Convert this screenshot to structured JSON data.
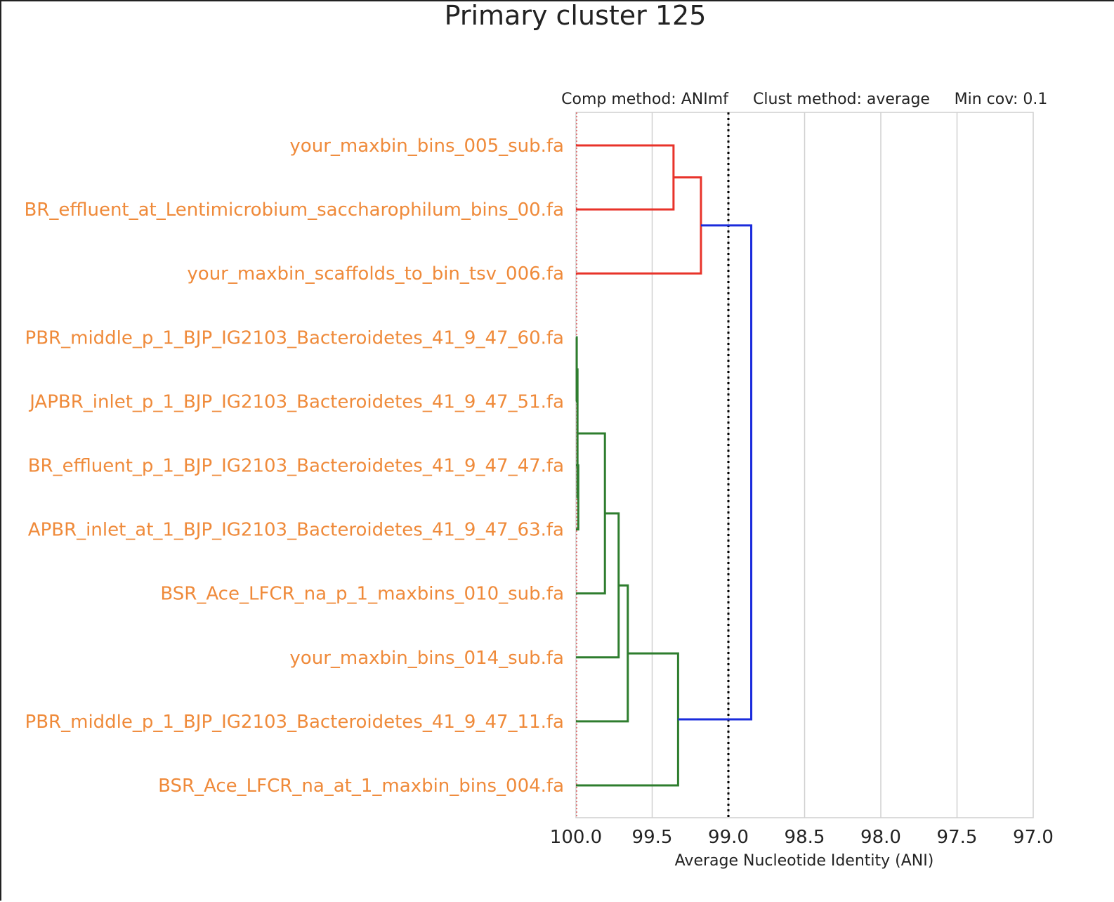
{
  "chart_data": {
    "type": "dendrogram",
    "title": "Primary cluster 125",
    "annotations": [
      "Comp method: ANImf",
      "Clust method: average",
      "Min cov: 0.1"
    ],
    "xlabel": "Average Nucleotide Identity (ANI)",
    "xlim": [
      100.0,
      97.0
    ],
    "x_ticks": [
      "100.0",
      "99.5",
      "99.0",
      "98.5",
      "98.0",
      "97.5",
      "97.0"
    ],
    "tick_values": [
      100.0,
      99.5,
      99.0,
      98.5,
      98.0,
      97.5,
      97.0
    ],
    "grid": true,
    "threshold_line": 99.0,
    "reference_line": 100.0,
    "leaf_color": "#ef8a3a",
    "colors": {
      "red": "#e8332a",
      "green": "#2e7d2e",
      "blue": "#1a2bdc",
      "threshold": "#000000",
      "reference": "#e05a5a"
    },
    "leaves": [
      "your_maxbin_bins_005_sub.fa",
      "BR_effluent_at_Lentimicrobium_saccharophilum_bins_00.fa",
      "your_maxbin_scaffolds_to_bin_tsv_006.fa",
      "PBR_middle_p_1_BJP_IG2103_Bacteroidetes_41_9_47_60.fa",
      "JAPBR_inlet_p_1_BJP_IG2103_Bacteroidetes_41_9_47_51.fa",
      "BR_effluent_p_1_BJP_IG2103_Bacteroidetes_41_9_47_47.fa",
      "APBR_inlet_at_1_BJP_IG2103_Bacteroidetes_41_9_47_63.fa",
      "BSR_Ace_LFCR_na_p_1_maxbins_010_sub.fa",
      "your_maxbin_bins_014_sub.fa",
      "PBR_middle_p_1_BJP_IG2103_Bacteroidetes_41_9_47_11.fa",
      "BSR_Ace_LFCR_na_at_1_maxbin_bins_004.fa"
    ],
    "merges": [
      {
        "left": "L0",
        "right": "L1",
        "ani": 99.36,
        "color": "red"
      },
      {
        "left": "M0",
        "right": "L2",
        "ani": 99.18,
        "color": "red"
      },
      {
        "left": "L3",
        "right": "L4",
        "ani": 99.995,
        "color": "green"
      },
      {
        "left": "L5",
        "right": "L6",
        "ani": 99.985,
        "color": "green"
      },
      {
        "left": "M2",
        "right": "M3",
        "ani": 99.99,
        "color": "green"
      },
      {
        "left": "M4",
        "right": "L7",
        "ani": 99.81,
        "color": "green"
      },
      {
        "left": "M5",
        "right": "L8",
        "ani": 99.72,
        "color": "green"
      },
      {
        "left": "M6",
        "right": "L9",
        "ani": 99.66,
        "color": "green"
      },
      {
        "left": "M7",
        "right": "L10",
        "ani": 99.33,
        "color": "green"
      },
      {
        "left": "M1",
        "right": "M8",
        "ani": 98.85,
        "color": "blue"
      }
    ]
  }
}
